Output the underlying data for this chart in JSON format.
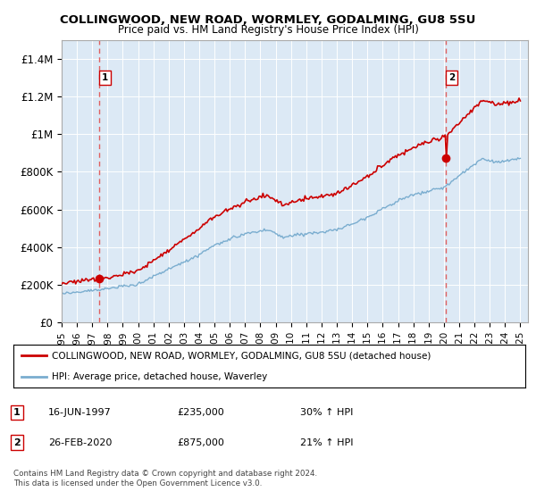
{
  "title": "COLLINGWOOD, NEW ROAD, WORMLEY, GODALMING, GU8 5SU",
  "subtitle": "Price paid vs. HM Land Registry's House Price Index (HPI)",
  "background_color": "#dce9f5",
  "plot_bg_color": "#dce9f5",
  "ylim": [
    0,
    1500000
  ],
  "yticks": [
    0,
    200000,
    400000,
    600000,
    800000,
    1000000,
    1200000,
    1400000
  ],
  "ytick_labels": [
    "£0",
    "£200K",
    "£400K",
    "£600K",
    "£800K",
    "£1M",
    "£1.2M",
    "£1.4M"
  ],
  "xlim_start": 1995.0,
  "xlim_end": 2025.5,
  "sale1_date": 1997.46,
  "sale1_price": 235000,
  "sale2_date": 2020.15,
  "sale2_price": 875000,
  "legend_red": "COLLINGWOOD, NEW ROAD, WORMLEY, GODALMING, GU8 5SU (detached house)",
  "legend_blue": "HPI: Average price, detached house, Waverley",
  "annotation1_date": "16-JUN-1997",
  "annotation1_price": "£235,000",
  "annotation1_hpi": "30% ↑ HPI",
  "annotation2_date": "26-FEB-2020",
  "annotation2_price": "£875,000",
  "annotation2_hpi": "21% ↑ HPI",
  "footnote": "Contains HM Land Registry data © Crown copyright and database right 2024.\nThis data is licensed under the Open Government Licence v3.0.",
  "red_color": "#cc0000",
  "blue_color": "#7aadcf",
  "dashed_color": "#e06060"
}
